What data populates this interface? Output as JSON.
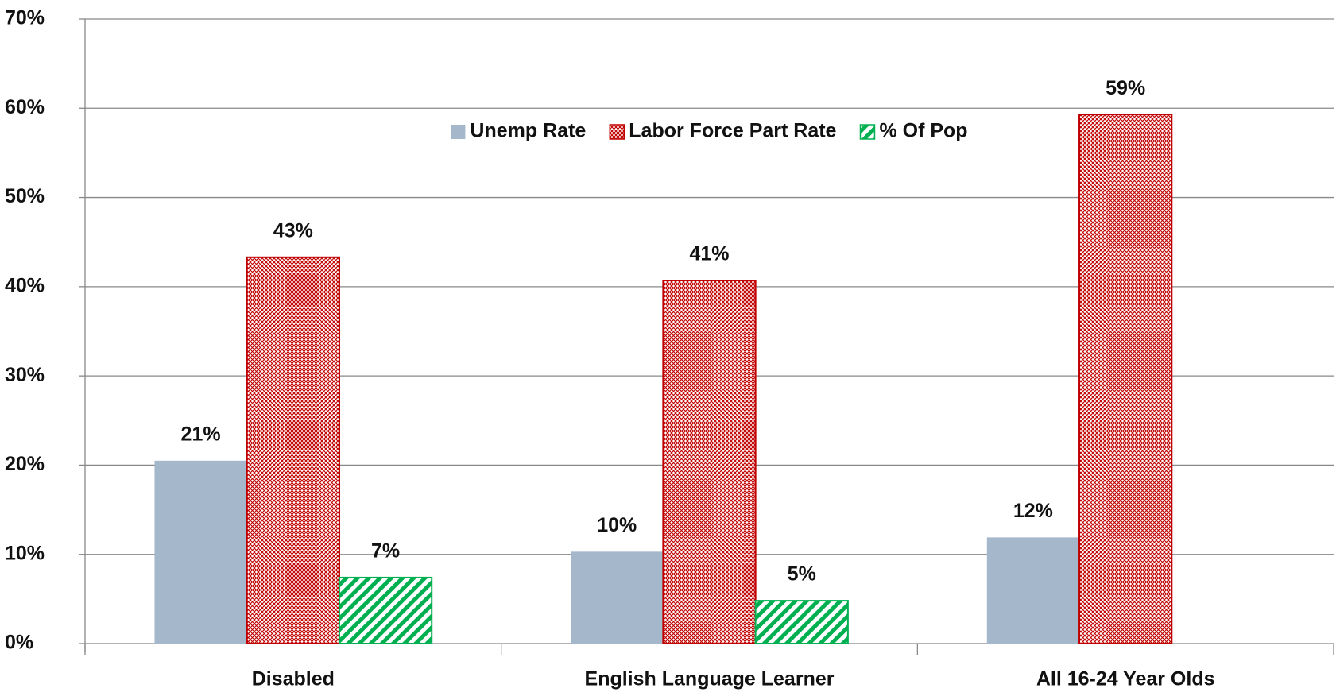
{
  "chart_data": {
    "type": "bar",
    "categories": [
      "Disabled",
      "English Language Learner",
      "All 16-24 Year Olds"
    ],
    "series": [
      {
        "name": "Unemp Rate",
        "color": "#a5b8cb",
        "values": [
          20.5,
          10.3,
          11.9
        ],
        "value_labels": [
          "21%",
          "10%",
          "12%"
        ]
      },
      {
        "name": "Labor Force Part Rate",
        "color": "#c00000",
        "pattern": "crosshatch",
        "values": [
          43.3,
          40.7,
          59.3
        ],
        "value_labels": [
          "43%",
          "41%",
          "59%"
        ]
      },
      {
        "name": "% Of Pop",
        "color": "#00b050",
        "pattern": "diagonal",
        "values": [
          7.4,
          4.8,
          null
        ],
        "value_labels": [
          "7%",
          "5%",
          null
        ]
      }
    ],
    "ylim": [
      0,
      70
    ],
    "yticks": [
      {
        "value": 0,
        "label": "0%"
      },
      {
        "value": 10,
        "label": "10%"
      },
      {
        "value": 20,
        "label": "20%"
      },
      {
        "value": 30,
        "label": "30%"
      },
      {
        "value": 40,
        "label": "40%"
      },
      {
        "value": 50,
        "label": "50%"
      },
      {
        "value": 60,
        "label": "60%"
      },
      {
        "value": 70,
        "label": "70%"
      }
    ],
    "grid": true,
    "legend": "top"
  }
}
